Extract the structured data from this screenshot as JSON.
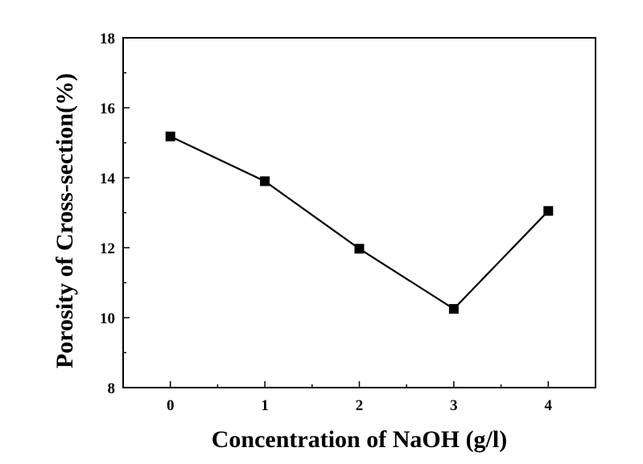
{
  "chart_data": {
    "type": "line",
    "title": "",
    "xlabel": "Concentration of NaOH (g/l)",
    "ylabel": "Porosity of Cross-section(%)",
    "x": [
      0,
      1,
      2,
      3,
      4
    ],
    "series": [
      {
        "values": [
          15.18,
          13.9,
          11.97,
          10.25,
          13.05
        ],
        "marker": "square",
        "color": "#000000"
      }
    ],
    "xlim": [
      -0.5,
      4.5
    ],
    "ylim": [
      8,
      18
    ],
    "xticks": [
      "0",
      "1",
      "2",
      "3",
      "4"
    ],
    "yticks": [
      "8",
      "10",
      "12",
      "14",
      "16",
      "18"
    ],
    "grid": false,
    "legend": "none"
  }
}
